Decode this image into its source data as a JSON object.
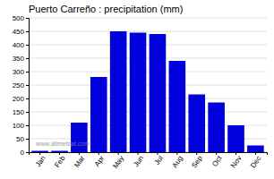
{
  "chart_data": {
    "type": "bar",
    "title": "Puerto Carreño : precipitation (mm)",
    "categories": [
      "Jan",
      "Feb",
      "Mar",
      "Apr",
      "May",
      "Jun",
      "Jul",
      "Aug",
      "Sep",
      "Oct",
      "Nov",
      "Dec"
    ],
    "values": [
      5,
      5,
      110,
      280,
      450,
      445,
      440,
      340,
      215,
      185,
      100,
      25
    ],
    "color": "#0000dd",
    "ylim": [
      0,
      500
    ],
    "yticks": [
      0,
      50,
      100,
      150,
      200,
      250,
      300,
      350,
      400,
      450,
      500
    ],
    "grid": true,
    "annotations": [
      "www.allmetsat.com"
    ]
  }
}
